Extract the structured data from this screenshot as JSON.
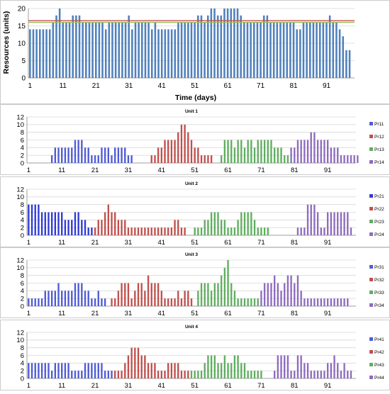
{
  "chart_data": [
    {
      "type": "bar",
      "panel": "total",
      "title": "",
      "xlabel": "Time (days)",
      "ylabel": "Resources (units)",
      "ylim": [
        0,
        20
      ],
      "yticks": [
        0,
        5,
        10,
        15,
        20
      ],
      "xticks": [
        1,
        11,
        21,
        31,
        41,
        51,
        61,
        71,
        81,
        91
      ],
      "grid": true,
      "bar_color": "#4f81bd",
      "reference_lines": [
        {
          "value": 16.5,
          "color": "#c0504d"
        },
        {
          "value": 16.0,
          "color": "#9bbb59"
        }
      ],
      "x": [
        1,
        2,
        3,
        4,
        5,
        6,
        7,
        8,
        9,
        10,
        11,
        12,
        13,
        14,
        15,
        16,
        17,
        18,
        19,
        20,
        21,
        22,
        23,
        24,
        25,
        26,
        27,
        28,
        29,
        30,
        31,
        32,
        33,
        34,
        35,
        36,
        37,
        38,
        39,
        40,
        41,
        42,
        43,
        44,
        45,
        46,
        47,
        48,
        49,
        50,
        51,
        52,
        53,
        54,
        55,
        56,
        57,
        58,
        59,
        60,
        61,
        62,
        63,
        64,
        65,
        66,
        67,
        68,
        69,
        70,
        71,
        72,
        73,
        74,
        75,
        76,
        77,
        78,
        79,
        80,
        81,
        82,
        83,
        84,
        85,
        86,
        87,
        88,
        89,
        90,
        91,
        92,
        93,
        94,
        95,
        96,
        97,
        98
      ],
      "values": [
        14,
        14,
        14,
        14,
        14,
        14,
        14,
        16,
        18,
        20,
        16,
        16,
        16,
        18,
        18,
        18,
        16,
        16,
        16,
        16,
        16,
        16,
        16,
        14,
        16,
        16,
        16,
        16,
        16,
        16,
        18,
        14,
        16,
        16,
        16,
        16,
        16,
        14,
        16,
        14,
        14,
        14,
        14,
        14,
        14,
        16,
        16,
        16,
        16,
        16,
        16,
        18,
        18,
        16,
        18,
        20,
        20,
        18,
        18,
        20,
        20,
        20,
        20,
        20,
        18,
        16,
        16,
        16,
        16,
        16,
        16,
        18,
        18,
        16,
        16,
        16,
        16,
        16,
        16,
        16,
        16,
        14,
        14,
        16,
        16,
        16,
        16,
        16,
        16,
        16,
        16,
        18,
        16,
        16,
        14,
        12,
        8,
        8
      ]
    },
    {
      "type": "bar",
      "panel": "unit1",
      "title": "Unit 1",
      "ylim": [
        0,
        12
      ],
      "yticks": [
        0,
        2,
        4,
        6,
        8,
        10,
        12
      ],
      "xticks": [
        1,
        11,
        21,
        31,
        41,
        51,
        61,
        71,
        81,
        91
      ],
      "grid": true,
      "legend_placement": "right",
      "series": [
        {
          "name": "Pr11",
          "color": "#4f5bd5",
          "start": 8,
          "values": [
            2,
            4,
            4,
            4,
            4,
            4,
            4,
            6,
            6,
            6,
            4,
            4,
            2,
            2,
            2,
            4,
            4,
            4,
            2,
            4,
            4,
            4,
            4,
            2,
            2
          ]
        },
        {
          "name": "Pr12",
          "color": "#c0504d",
          "start": 38,
          "values": [
            2,
            2,
            4,
            4,
            6,
            6,
            6,
            6,
            8,
            10,
            10,
            8,
            6,
            4,
            4,
            2,
            2,
            2,
            2
          ]
        },
        {
          "name": "Pr13",
          "color": "#5fae5f",
          "start": 59,
          "values": [
            2,
            6,
            6,
            6,
            4,
            6,
            6,
            4,
            6,
            6,
            4,
            6,
            6,
            6,
            6,
            6,
            4,
            4,
            4,
            2,
            2
          ]
        },
        {
          "name": "Pr14",
          "color": "#8e6bbf",
          "start": 80,
          "values": [
            4,
            4,
            6,
            6,
            6,
            6,
            8,
            8,
            6,
            6,
            6,
            6,
            4,
            4,
            4,
            2,
            2,
            2,
            2,
            2,
            2
          ]
        }
      ]
    },
    {
      "type": "bar",
      "panel": "unit2",
      "title": "Unit 2",
      "ylim": [
        0,
        12
      ],
      "yticks": [
        0,
        2,
        4,
        6,
        8,
        10,
        12
      ],
      "xticks": [
        1,
        11,
        21,
        31,
        41,
        51,
        61,
        71,
        81,
        91
      ],
      "grid": true,
      "legend_placement": "right",
      "series": [
        {
          "name": "Pr21",
          "color": "#2e3ad6",
          "start": 1,
          "values": [
            8,
            8,
            8,
            8,
            6,
            6,
            6,
            6,
            6,
            6,
            6,
            4,
            4,
            4,
            6,
            6,
            4,
            4,
            2,
            2
          ]
        },
        {
          "name": "Pr22",
          "color": "#c0504d",
          "start": 21,
          "values": [
            2,
            4,
            4,
            6,
            8,
            6,
            6,
            4,
            4,
            4,
            2,
            2,
            2,
            2,
            2,
            2,
            2,
            2,
            2,
            2,
            2,
            2,
            2,
            2,
            4,
            4,
            2,
            2
          ]
        },
        {
          "name": "Pr23",
          "color": "#5fae5f",
          "start": 51,
          "values": [
            2,
            2,
            2,
            4,
            4,
            6,
            6,
            6,
            4,
            4,
            2,
            2,
            2,
            4,
            6,
            6,
            6,
            6,
            4,
            2,
            2,
            2,
            2
          ]
        },
        {
          "name": "Pr24",
          "color": "#8e6bbf",
          "start": 82,
          "values": [
            2,
            2,
            2,
            8,
            8,
            8,
            6,
            2,
            2,
            6,
            6,
            6,
            6,
            6,
            6,
            6,
            2
          ]
        }
      ]
    },
    {
      "type": "bar",
      "panel": "unit3",
      "title": "Unit 3",
      "ylim": [
        0,
        12
      ],
      "yticks": [
        0,
        2,
        4,
        6,
        8,
        10,
        12
      ],
      "xticks": [
        1,
        11,
        21,
        31,
        41,
        51,
        61,
        71,
        81,
        91
      ],
      "grid": true,
      "legend_placement": "right",
      "series": [
        {
          "name": "Pr31",
          "color": "#4f5bd5",
          "start": 1,
          "values": [
            2,
            2,
            2,
            2,
            2,
            4,
            4,
            4,
            4,
            6,
            4,
            4,
            4,
            4,
            6,
            6,
            6,
            4,
            4,
            2,
            2,
            4,
            2,
            2
          ]
        },
        {
          "name": "Pr32",
          "color": "#c0504d",
          "start": 26,
          "values": [
            2,
            2,
            4,
            6,
            6,
            6,
            2,
            4,
            6,
            6,
            4,
            8,
            6,
            6,
            6,
            4,
            2,
            2,
            2,
            2,
            4,
            2,
            4,
            4,
            2
          ]
        },
        {
          "name": "Pr33",
          "color": "#5fae5f",
          "start": 52,
          "values": [
            4,
            6,
            6,
            6,
            4,
            6,
            6,
            8,
            10,
            12,
            6,
            4,
            2,
            2,
            2,
            2,
            2,
            2,
            2
          ]
        },
        {
          "name": "Pr34",
          "color": "#8e6bbf",
          "start": 71,
          "values": [
            4,
            6,
            6,
            6,
            8,
            6,
            4,
            6,
            8,
            8,
            6,
            8,
            4,
            2,
            2,
            2,
            2,
            2,
            2,
            2,
            2,
            2,
            2,
            2,
            2,
            2,
            2
          ]
        }
      ]
    },
    {
      "type": "bar",
      "panel": "unit4",
      "title": "Unit 4",
      "ylim": [
        0,
        12
      ],
      "yticks": [
        0,
        2,
        4,
        6,
        8,
        10,
        12
      ],
      "xticks": [
        1,
        11,
        21,
        31,
        41,
        51,
        61,
        71,
        81,
        91
      ],
      "grid": true,
      "legend_placement": "right",
      "series": [
        {
          "name": "Pr41",
          "color": "#4f5bd5",
          "start": 1,
          "values": [
            4,
            4,
            4,
            4,
            4,
            4,
            4,
            2,
            4,
            4,
            4,
            4,
            4,
            2,
            2,
            2,
            2,
            4,
            4,
            4,
            4,
            4,
            4,
            2,
            2,
            2
          ]
        },
        {
          "name": "Pr42",
          "color": "#c0504d",
          "start": 27,
          "values": [
            2,
            2,
            2,
            4,
            6,
            8,
            8,
            8,
            6,
            6,
            4,
            4,
            4,
            2,
            2,
            2,
            4,
            4,
            4,
            4,
            2,
            2,
            2
          ]
        },
        {
          "name": "Pr43",
          "color": "#5fae5f",
          "start": 50,
          "values": [
            2,
            2,
            2,
            2,
            4,
            6,
            6,
            6,
            4,
            4,
            6,
            4,
            4,
            6,
            6,
            4,
            4,
            2,
            2,
            2,
            2,
            2
          ]
        },
        {
          "name": "Pr44",
          "color": "#8e6bbf",
          "start": 75,
          "values": [
            2,
            6,
            6,
            6,
            6,
            2,
            2,
            6,
            6,
            4,
            4,
            2,
            2,
            2,
            2,
            2,
            4,
            4,
            6,
            4,
            2,
            4,
            2,
            2
          ]
        }
      ]
    }
  ]
}
